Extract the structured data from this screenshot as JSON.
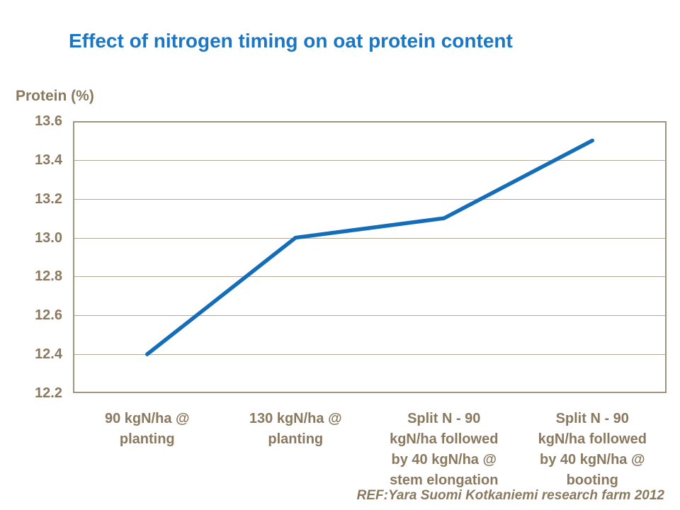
{
  "chart_data": {
    "type": "line",
    "title": "Effect of nitrogen timing on oat protein content",
    "y_axis_title": "Protein (%)",
    "footnote": "REF:Yara Suomi Kotkaniemi research farm 2012",
    "categories": [
      "90 kgN/ha @\nplanting",
      "130 kgN/ha @\nplanting",
      "Split N - 90\nkgN/ha followed\nby 40 kgN/ha @\nstem elongation",
      "Split N - 90\nkgN/ha followed\nby 40 kgN/ha @\nbooting"
    ],
    "series": [
      {
        "name": "Protein (%)",
        "values": [
          12.4,
          13.0,
          13.1,
          13.5
        ]
      }
    ],
    "ylim": [
      12.2,
      13.6
    ],
    "ytick_labels": [
      "13.6",
      "13.4",
      "13.2",
      "13.0",
      "12.8",
      "12.6",
      "12.4",
      "12.2"
    ],
    "grid": "horizontal",
    "legend": "none"
  },
  "colors": {
    "title": "#1b76c3",
    "line": "#146db8",
    "axis_text": "#8a795e",
    "gridline": "#b2a898",
    "plot_border": "#a09480",
    "background": "#ffffff"
  }
}
